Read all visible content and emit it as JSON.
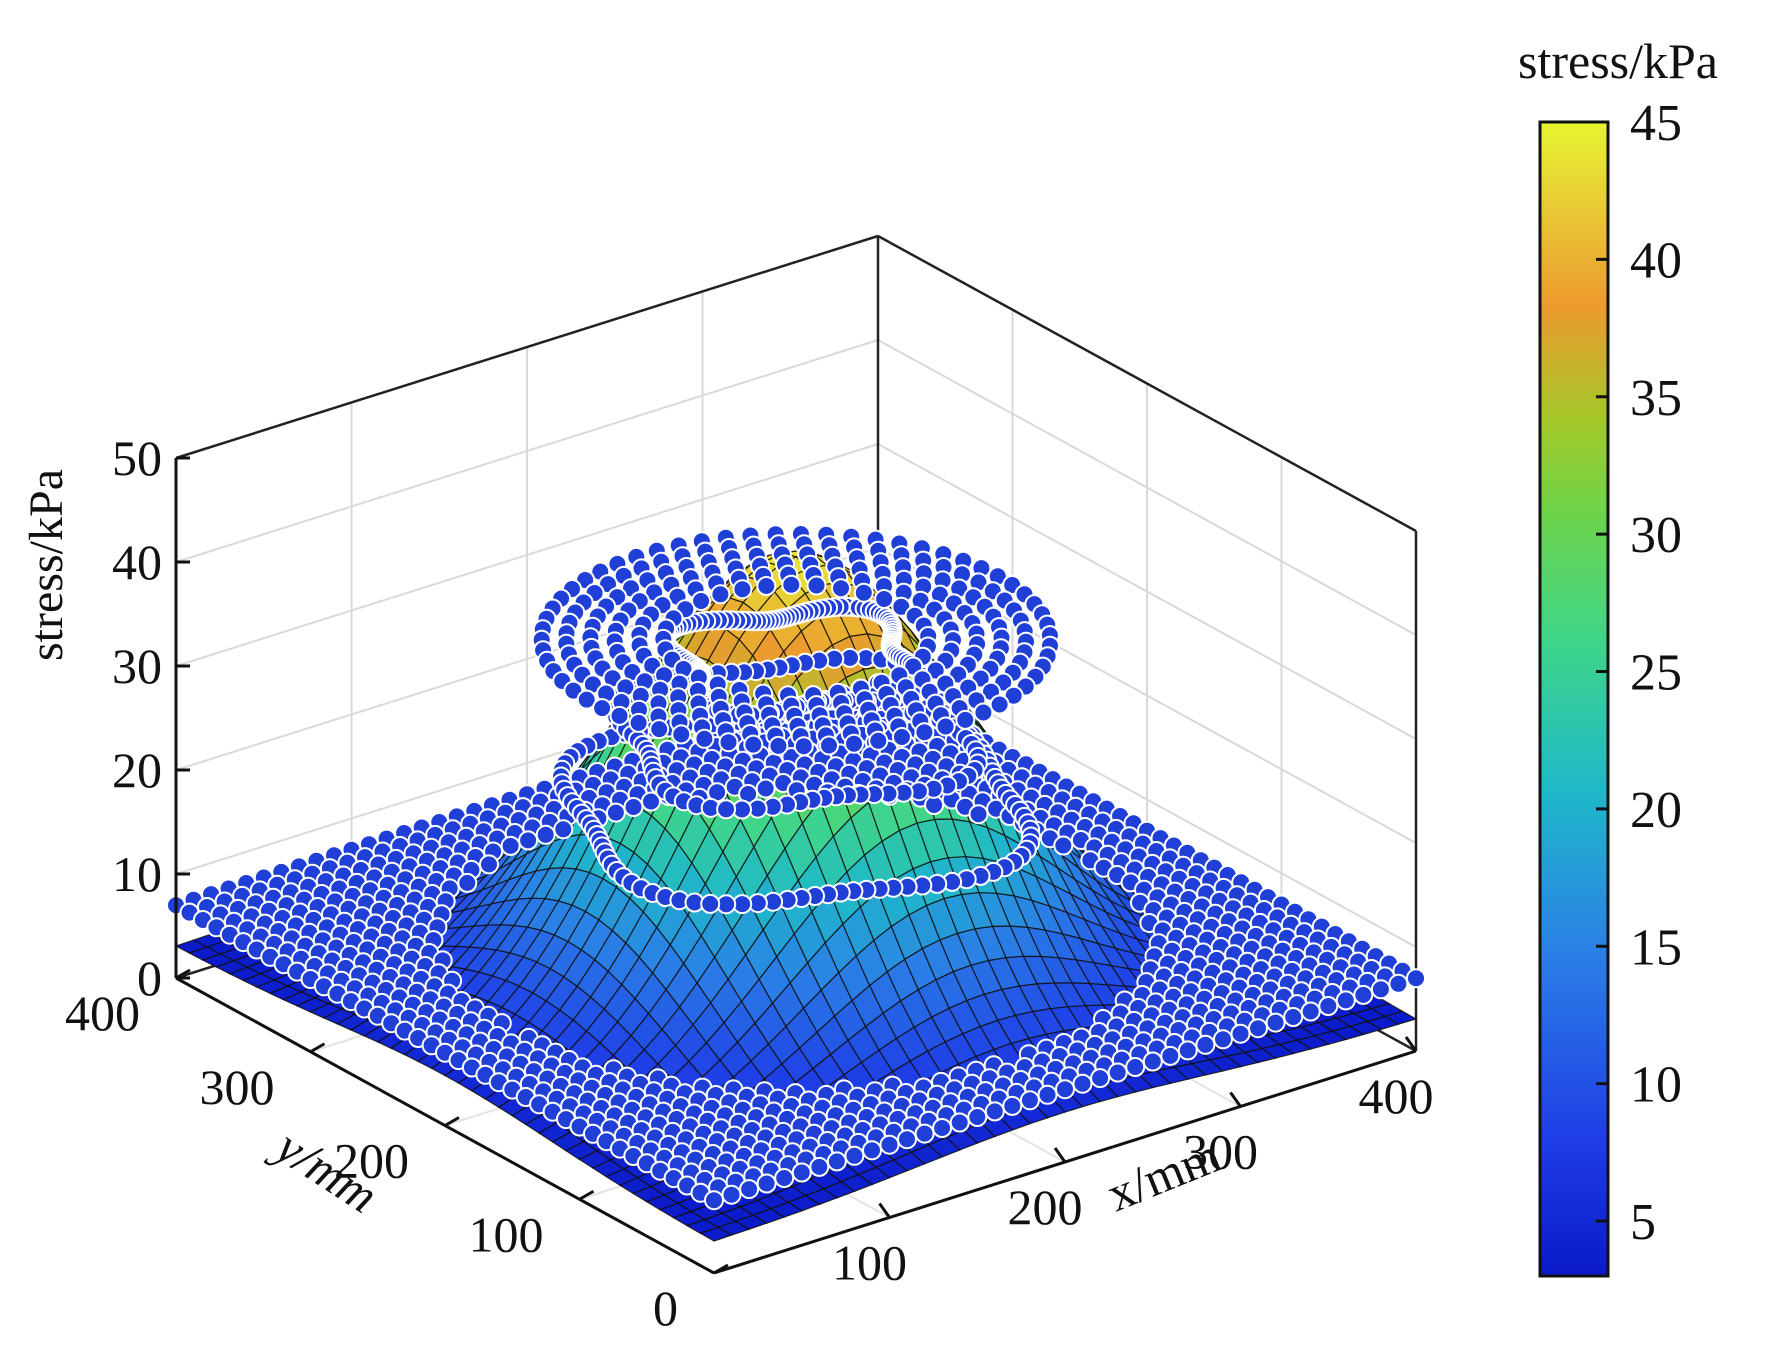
{
  "chart_data": {
    "type": "surface3d",
    "title": "",
    "xlabel": "x/mm",
    "ylabel": "y/mm",
    "zlabel": "stress/kPa",
    "xlim": [
      0,
      400
    ],
    "ylim": [
      0,
      400
    ],
    "zlim": [
      0,
      50
    ],
    "x_ticks": [
      "100",
      "200",
      "300",
      "400"
    ],
    "y_ticks": [
      "0",
      "100",
      "200",
      "300",
      "400"
    ],
    "z_ticks": [
      "0",
      "10",
      "20",
      "30",
      "40",
      "50"
    ],
    "grid": true,
    "surface": {
      "description_of_shape": "bell-shaped stress distribution centered at (200,200)",
      "peak_stress_kPa": 44,
      "base_stress_kPa": 3,
      "center": [
        200,
        200
      ],
      "grid_spacing_mm": 10
    },
    "measured_points": {
      "marker": "filled circle",
      "color": "#1f3fd6",
      "edge_color": "#ffffff",
      "layers_kPa": [
        7,
        20,
        27,
        34
      ]
    },
    "colorbar": {
      "label": "stress/kPa",
      "ticks": [
        "5",
        "10",
        "15",
        "20",
        "25",
        "30",
        "35",
        "40",
        "45"
      ],
      "range": [
        3,
        45
      ],
      "colormap": "parula"
    }
  }
}
